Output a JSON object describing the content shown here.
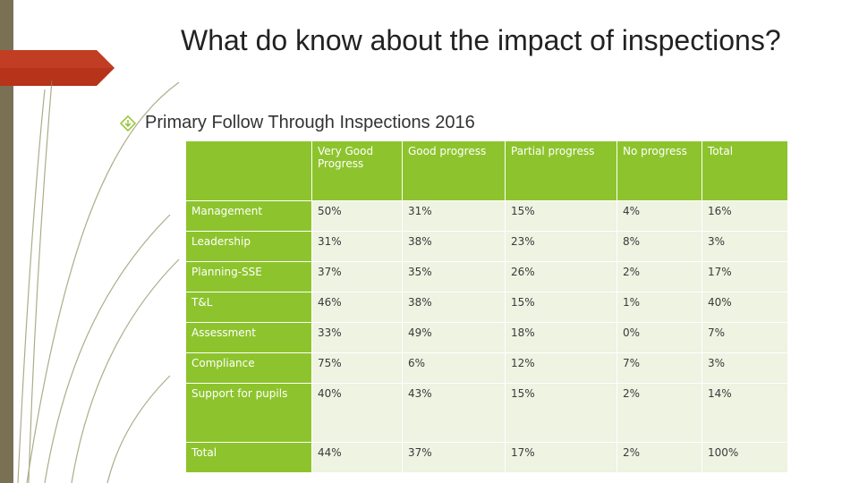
{
  "slide": {
    "title": "What do know about the impact of inspections?",
    "bullet": "Primary Follow Through Inspections 2016"
  },
  "table": {
    "headers": [
      "",
      "Very Good Progress",
      "Good progress",
      "Partial progress",
      "No progress",
      "Total"
    ],
    "rows": [
      [
        "Management",
        "50%",
        "31%",
        "15%",
        "4%",
        "16%"
      ],
      [
        "Leadership",
        "31%",
        "38%",
        "23%",
        "8%",
        "3%"
      ],
      [
        "Planning-SSE",
        "37%",
        "35%",
        "26%",
        "2%",
        "17%"
      ],
      [
        "T&L",
        "46%",
        "38%",
        "15%",
        "1%",
        "40%"
      ],
      [
        "Assessment",
        "33%",
        "49%",
        "18%",
        "0%",
        "7%"
      ],
      [
        "Compliance",
        "75%",
        "6%",
        "12%",
        "7%",
        "3%"
      ],
      [
        "Support for pupils",
        "40%",
        "43%",
        "15%",
        "2%",
        "14%"
      ],
      [
        "Total",
        "44%",
        "37%",
        "17%",
        "2%",
        "100%"
      ]
    ]
  },
  "colors": {
    "accent_green": "#8dc42d",
    "cell_light": "#eef3e2",
    "tab_red": "#b5341a",
    "sidebar_olive": "#7a7155"
  },
  "icons": {
    "bullet": "diamond-arrow-icon"
  }
}
